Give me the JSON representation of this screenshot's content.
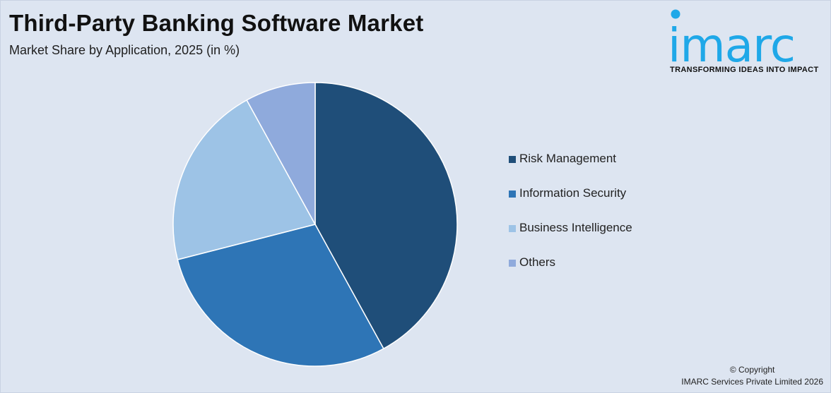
{
  "header": {
    "title": "Third-Party Banking Software Market",
    "subtitle": "Market Share by Application, 2025 (in %)"
  },
  "logo": {
    "wordmark": "imarc",
    "tagline": "TRANSFORMING IDEAS INTO IMPACT",
    "color": "#1fa8e8"
  },
  "chart_data": {
    "type": "pie",
    "title": "Third-Party Banking Software Market",
    "subtitle": "Market Share by Application, 2025 (in %)",
    "categories": [
      "Risk Management",
      "Information Security",
      "Business Intelligence",
      "Others"
    ],
    "values": [
      42,
      29,
      21,
      8
    ],
    "colors": [
      "#1f4e79",
      "#2e75b6",
      "#9dc3e6",
      "#8faadc"
    ],
    "start_angle_deg": 0,
    "direction": "clockwise",
    "legend_position": "right"
  },
  "footer": {
    "copyright_line1": "© Copyright",
    "copyright_line2": "IMARC Services Private Limited 2026"
  }
}
